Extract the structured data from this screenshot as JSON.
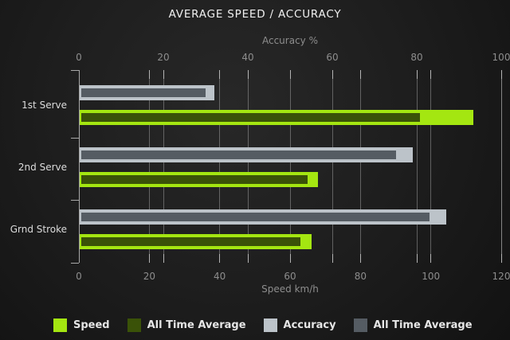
{
  "title": "AVERAGE SPEED / ACCURACY",
  "colors": {
    "background": "#1e1e1e",
    "speed": "#a4e611",
    "speed_all_time_average": "#3a5208",
    "accuracy": "#bcc3c9",
    "accuracy_all_time_average": "#555c63",
    "grid": "#9a9a9a",
    "title_text": "#f0f0f0",
    "tick_text": "#8d8d8d",
    "category_text": "#dcdcdc",
    "legend_text": "#e6e6e6"
  },
  "chart_data": {
    "type": "bar",
    "orientation": "horizontal",
    "title": "AVERAGE SPEED / ACCURACY",
    "categories": [
      "1st Serve",
      "2nd Serve",
      "Grnd Stroke"
    ],
    "axes": {
      "top": {
        "label": "Accuracy %",
        "ticks": [
          0,
          20,
          40,
          60,
          80,
          100
        ],
        "min": 0,
        "max": 100
      },
      "bottom": {
        "label": "Speed km/h",
        "ticks": [
          0,
          20,
          40,
          60,
          80,
          100,
          120
        ],
        "min": 0,
        "max": 120
      }
    },
    "grid": true,
    "legend_position": "bottom",
    "series": [
      {
        "name": "Speed",
        "axis": "bottom",
        "role": "outer",
        "color": "#a4e611",
        "values": [
          112,
          68,
          66
        ]
      },
      {
        "name": "All Time Average",
        "axis": "bottom",
        "role": "inner",
        "color": "#3a5208",
        "values": [
          97,
          65,
          63
        ]
      },
      {
        "name": "Accuracy",
        "axis": "top",
        "role": "outer",
        "color": "#bcc3c9",
        "values": [
          32,
          79,
          87
        ]
      },
      {
        "name": "All Time Average",
        "axis": "top",
        "role": "inner",
        "color": "#555c63",
        "values": [
          30,
          75,
          83
        ]
      }
    ],
    "legend": [
      {
        "label": "Speed",
        "color": "#a4e611"
      },
      {
        "label": "All Time Average",
        "color": "#3a5208"
      },
      {
        "label": "Accuracy",
        "color": "#bcc3c9"
      },
      {
        "label": "All Time Average",
        "color": "#555c63"
      }
    ]
  }
}
